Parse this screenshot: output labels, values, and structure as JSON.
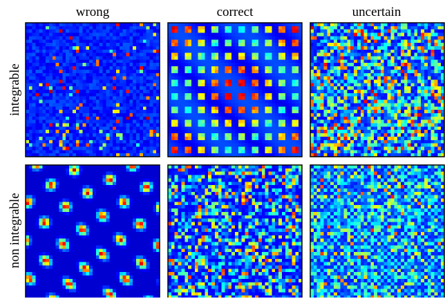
{
  "columns": [
    "wrong",
    "correct",
    "uncertain"
  ],
  "rows": [
    "integrable",
    "non integrable"
  ]
}
